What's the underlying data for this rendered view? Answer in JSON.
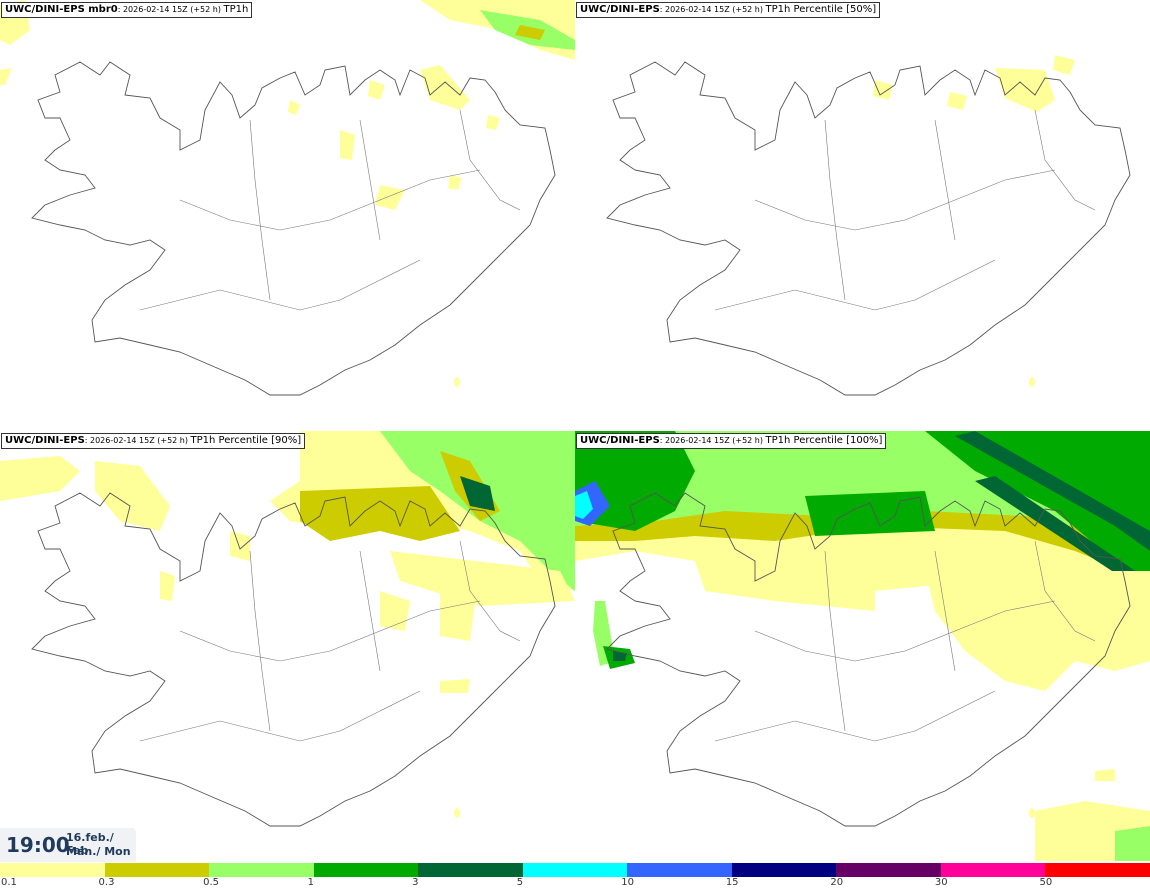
{
  "panels": [
    {
      "id": "tl",
      "model": "UWC/DINI-EPS mbr0",
      "meta": ": 2026-02-14 15Z (+52 h) ",
      "field": "TP1h"
    },
    {
      "id": "tr",
      "model": "UWC/DINI-EPS",
      "meta": ": 2026-02-14 15Z (+52 h) ",
      "field": "TP1h Percentile [50%]"
    },
    {
      "id": "bl",
      "model": "UWC/DINI-EPS",
      "meta": ": 2026-02-14 15Z (+52 h) ",
      "field": "TP1h Percentile [90%]"
    },
    {
      "id": "br",
      "model": "UWC/DINI-EPS",
      "meta": ": 2026-02-14 15Z (+52 h) ",
      "field": "TP1h Percentile [100%]"
    }
  ],
  "time": {
    "clock": "19:00",
    "date_line1": "16.feb./ Feb",
    "date_line2": "Mán./ Mon"
  },
  "colorbar": {
    "colors": [
      "#ffff99",
      "#cccc00",
      "#99ff66",
      "#00aa00",
      "#006633",
      "#00ffff",
      "#3366ff",
      "#000080",
      "#660066",
      "#ff0099",
      "#ff0000"
    ],
    "ticks": [
      "0.1",
      "0.3",
      "0.5",
      "1",
      "3",
      "5",
      "10",
      "15",
      "20",
      "30",
      "50"
    ]
  }
}
